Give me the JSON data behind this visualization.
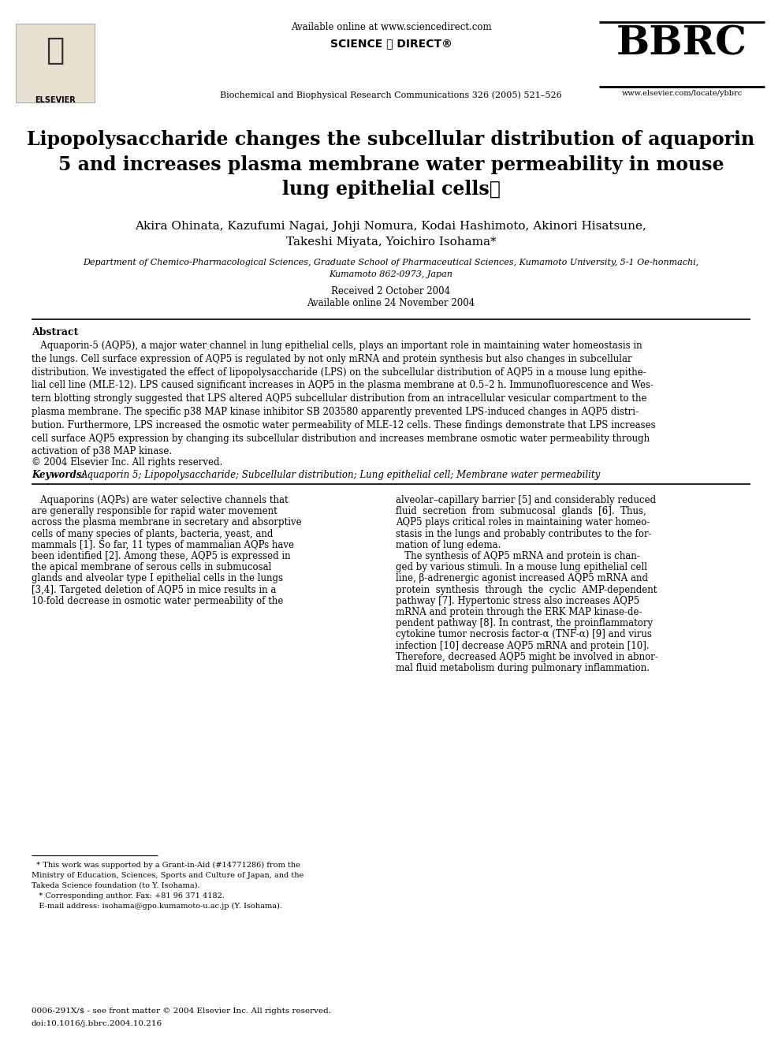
{
  "background_color": "#ffffff",
  "header": {
    "available_online": "Available online at www.sciencedirect.com",
    "journal": "Biochemical and Biophysical Research Communications 326 (2005) 521–526",
    "website": "www.elsevier.com/locate/ybbrc",
    "bbrc_text": "BBRC",
    "elsevier_text": "ELSEVIER"
  },
  "title": "Lipopolysaccharide changes the subcellular distribution of aquaporin\n5 and increases plasma membrane water permeability in mouse\nlung epithelial cells⋆",
  "authors_line1": "Akira Ohinata, Kazufumi Nagai, Johji Nomura, Kodai Hashimoto, Akinori Hisatsune,",
  "authors_line2": "Takeshi Miyata, Yoichiro Isohama*",
  "affiliation_line1": "Department of Chemico-Pharmacological Sciences, Graduate School of Pharmaceutical Sciences, Kumamoto University, 5-1 Oe-honmachi,",
  "affiliation_line2": "Kumamoto 862-0973, Japan",
  "received": "Received 2 October 2004",
  "available": "Available online 24 November 2004",
  "abstract_label": "Abstract",
  "abstract_text": "   Aquaporin-5 (AQP5), a major water channel in lung epithelial cells, plays an important role in maintaining water homeostasis in\nthe lungs. Cell surface expression of AQP5 is regulated by not only mRNA and protein synthesis but also changes in subcellular\ndistribution. We investigated the effect of lipopolysaccharide (LPS) on the subcellular distribution of AQP5 in a mouse lung epithe-\nlial cell line (MLE-12). LPS caused significant increases in AQP5 in the plasma membrane at 0.5–2 h. Immunofluorescence and Wes-\ntern blotting strongly suggested that LPS altered AQP5 subcellular distribution from an intracellular vesicular compartment to the\nplasma membrane. The specific p38 MAP kinase inhibitor SB 203580 apparently prevented LPS-induced changes in AQP5 distri-\nbution. Furthermore, LPS increased the osmotic water permeability of MLE-12 cells. These findings demonstrate that LPS increases\ncell surface AQP5 expression by changing its subcellular distribution and increases membrane osmotic water permeability through\nactivation of p38 MAP kinase.",
  "copyright": "© 2004 Elsevier Inc. All rights reserved.",
  "keywords_label": "Keywords: ",
  "keywords": "Aquaporin 5; Lipopolysaccharide; Subcellular distribution; Lung epithelial cell; Membrane water permeability",
  "body_col1_lines": [
    "   Aquaporins (AQPs) are water selective channels that",
    "are generally responsible for rapid water movement",
    "across the plasma membrane in secretary and absorptive",
    "cells of many species of plants, bacteria, yeast, and",
    "mammals [1]. So far, 11 types of mammalian AQPs have",
    "been identified [2]. Among these, AQP5 is expressed in",
    "the apical membrane of serous cells in submucosal",
    "glands and alveolar type I epithelial cells in the lungs",
    "[3,4]. Targeted deletion of AQP5 in mice results in a",
    "10-fold decrease in osmotic water permeability of the"
  ],
  "body_col2_lines": [
    "alveolar–capillary barrier [5] and considerably reduced",
    "fluid  secretion  from  submucosal  glands  [6].  Thus,",
    "AQP5 plays critical roles in maintaining water homeo-",
    "stasis in the lungs and probably contributes to the for-",
    "mation of lung edema.",
    "   The synthesis of AQP5 mRNA and protein is chan-",
    "ged by various stimuli. In a mouse lung epithelial cell",
    "line, β-adrenergic agonist increased AQP5 mRNA and",
    "protein  synthesis  through  the  cyclic  AMP-dependent",
    "pathway [7]. Hypertonic stress also increases AQP5",
    "mRNA and protein through the ERK MAP kinase-de-",
    "pendent pathway [8]. In contrast, the proinflammatory",
    "cytokine tumor necrosis factor-α (TNF-α) [9] and virus",
    "infection [10] decrease AQP5 mRNA and protein [10].",
    "Therefore, decreased AQP5 might be involved in abnor-",
    "mal fluid metabolism during pulmonary inflammation."
  ],
  "footnote_line1": "  * This work was supported by a Grant-in-Aid (#14771286) from the",
  "footnote_line2": "Ministry of Education, Sciences, Sports and Culture of Japan, and the",
  "footnote_line3": "Takeda Science foundation (to Y. Isohama).",
  "footnote_line4": "   * Corresponding author. Fax: +81 96 371 4182.",
  "footnote_line5": "   E-mail address: isohama@gpo.kumamoto-u.ac.jp (Y. Isohama).",
  "footer1": "0006-291X/$ - see front matter © 2004 Elsevier Inc. All rights reserved.",
  "footer2": "doi:10.1016/j.bbrc.2004.10.216"
}
